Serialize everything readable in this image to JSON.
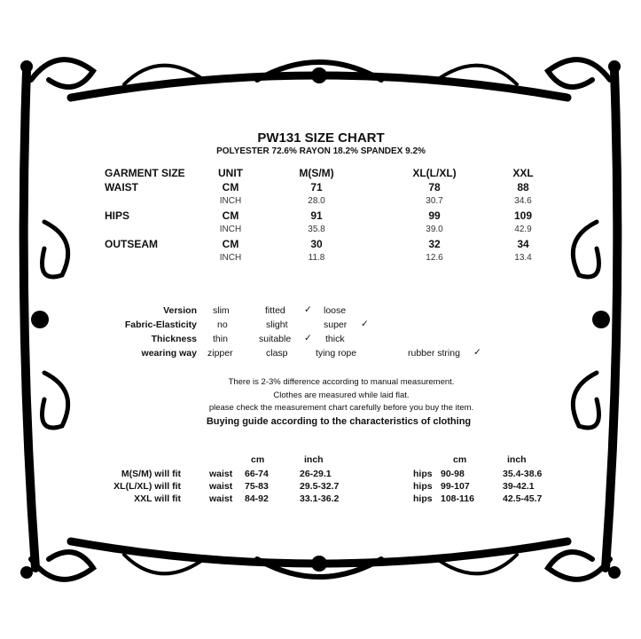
{
  "title": "PW131 SIZE CHART",
  "material": "POLYESTER 72.6% RAYON 18.2% SPANDEX 9.2%",
  "size_table": {
    "headers": [
      "GARMENT SIZE",
      "UNIT",
      "M(S/M)",
      "XL(L/XL)",
      "XXL"
    ],
    "rows": [
      {
        "label": "WAIST",
        "unit": "CM",
        "values": [
          "71",
          "78",
          "88"
        ]
      },
      {
        "label": "",
        "unit": "INCH",
        "values": [
          "28.0",
          "30.7",
          "34.6"
        ]
      },
      {
        "label": "HIPS",
        "unit": "CM",
        "values": [
          "91",
          "99",
          "109"
        ]
      },
      {
        "label": "",
        "unit": "INCH",
        "values": [
          "35.8",
          "39.0",
          "42.9"
        ]
      },
      {
        "label": "OUTSEAM",
        "unit": "CM",
        "values": [
          "30",
          "32",
          "34"
        ]
      },
      {
        "label": "",
        "unit": "INCH",
        "values": [
          "11.8",
          "12.6",
          "13.4"
        ]
      }
    ]
  },
  "attributes": [
    {
      "label": "Version",
      "options": [
        "slim",
        "fitted",
        "loose",
        ""
      ],
      "selected": 1
    },
    {
      "label": "Fabric-Elasticity",
      "options": [
        "no",
        "slight",
        "super",
        ""
      ],
      "selected": 2
    },
    {
      "label": "Thickness",
      "options": [
        "thin",
        "suitable",
        "thick",
        ""
      ],
      "selected": 1
    },
    {
      "label": "wearing way",
      "options": [
        "zipper",
        "clasp",
        "tying rope",
        "rubber string"
      ],
      "selected": 3
    }
  ],
  "check_mark": "✓",
  "notes": [
    "There is 2-3% difference according to manual measurement.",
    "Clothes are measured while laid flat.",
    "please check the measurement chart carefully before you buy the item."
  ],
  "guide_title": "Buying guide according to the characteristics of clothing",
  "fit_table": {
    "headers": {
      "cm": "cm",
      "inch": "inch"
    },
    "rows": [
      {
        "label": "M(S/M) will fit",
        "waist": "waist",
        "waist_cm": "66-74",
        "waist_inch": "26-29.1",
        "hips": "hips",
        "hips_cm": "90-98",
        "hips_inch": "35.4-38.6"
      },
      {
        "label": "XL(L/XL) will fit",
        "waist": "waist",
        "waist_cm": "75-83",
        "waist_inch": "29.5-32.7",
        "hips": "hips",
        "hips_cm": "99-107",
        "hips_inch": "39-42.1"
      },
      {
        "label": "XXL will fit",
        "waist": "waist",
        "waist_cm": "84-92",
        "waist_inch": "33.1-36.2",
        "hips": "hips",
        "hips_cm": "108-116",
        "hips_inch": "42.5-45.7"
      }
    ]
  }
}
